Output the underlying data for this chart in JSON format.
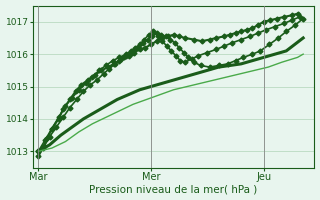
{
  "title": "Pression niveau de la mer( hPa )",
  "bg_color": "#e8f5ee",
  "plot_bg_color": "#e8f5ee",
  "grid_color": "#b0d4b8",
  "line_color_dark": "#1a5c1a",
  "line_color_medium": "#2d8b2d",
  "line_color_light": "#4aaa4a",
  "ylim": [
    1012.5,
    1017.5
  ],
  "yticks": [
    1013,
    1014,
    1015,
    1016,
    1017
  ],
  "xtick_labels": [
    "Mar",
    "Mer",
    "Jeu"
  ],
  "xtick_positions": [
    0.0,
    1.0,
    2.0
  ],
  "series": [
    {
      "x": [
        0.0,
        0.04,
        0.08,
        0.12,
        0.18,
        0.22,
        0.28,
        0.33,
        0.38,
        0.44,
        0.5,
        0.56,
        0.62,
        0.67,
        0.72,
        0.76,
        0.8,
        0.85,
        0.9,
        0.95,
        1.0,
        1.05,
        1.1,
        1.15,
        1.2,
        1.25,
        1.3,
        1.38,
        1.45,
        1.52,
        1.58,
        1.65,
        1.7,
        1.75,
        1.8,
        1.85,
        1.9,
        1.95,
        2.0,
        2.06,
        2.12,
        2.18,
        2.25,
        2.3
      ],
      "y": [
        1012.85,
        1013.1,
        1013.4,
        1013.7,
        1014.0,
        1014.3,
        1014.6,
        1014.85,
        1015.05,
        1015.2,
        1015.35,
        1015.5,
        1015.6,
        1015.7,
        1015.8,
        1015.9,
        1015.95,
        1016.05,
        1016.15,
        1016.2,
        1016.3,
        1016.4,
        1016.5,
        1016.55,
        1016.6,
        1016.55,
        1016.5,
        1016.45,
        1016.4,
        1016.45,
        1016.5,
        1016.55,
        1016.6,
        1016.65,
        1016.7,
        1016.75,
        1016.8,
        1016.9,
        1017.0,
        1017.05,
        1017.1,
        1017.15,
        1017.2,
        1017.25
      ],
      "color": "#1a5c1a",
      "lw": 1.5,
      "marker": true
    },
    {
      "x": [
        0.0,
        0.06,
        0.12,
        0.18,
        0.24,
        0.3,
        0.36,
        0.42,
        0.48,
        0.54,
        0.6,
        0.66,
        0.72,
        0.78,
        0.82,
        0.86,
        0.9,
        0.94,
        0.98,
        1.02,
        1.06,
        1.1,
        1.14,
        1.18,
        1.22,
        1.26,
        1.3,
        1.36,
        1.42,
        1.5,
        1.58,
        1.65,
        1.72,
        1.8,
        1.88,
        1.95,
        2.02,
        2.1,
        2.18,
        2.25,
        2.32
      ],
      "y": [
        1013.0,
        1013.35,
        1013.7,
        1014.05,
        1014.4,
        1014.65,
        1014.9,
        1015.1,
        1015.3,
        1015.5,
        1015.65,
        1015.8,
        1015.9,
        1016.0,
        1016.1,
        1016.2,
        1016.3,
        1016.45,
        1016.6,
        1016.7,
        1016.55,
        1016.4,
        1016.25,
        1016.1,
        1015.95,
        1015.8,
        1015.75,
        1015.85,
        1015.95,
        1016.05,
        1016.15,
        1016.25,
        1016.35,
        1016.45,
        1016.55,
        1016.65,
        1016.75,
        1016.85,
        1016.95,
        1017.05,
        1017.15
      ],
      "color": "#1a5c1a",
      "lw": 1.2,
      "marker": true
    },
    {
      "x": [
        0.0,
        0.05,
        0.1,
        0.16,
        0.22,
        0.28,
        0.34,
        0.4,
        0.46,
        0.52,
        0.58,
        0.63,
        0.68,
        0.73,
        0.78,
        0.83,
        0.88,
        0.93,
        0.97,
        1.01,
        1.05,
        1.09,
        1.13,
        1.17,
        1.21,
        1.25,
        1.29,
        1.33,
        1.38,
        1.44,
        1.52,
        1.6,
        1.68,
        1.75,
        1.82,
        1.9,
        1.97,
        2.05,
        2.13,
        2.2,
        2.28,
        2.35
      ],
      "y": [
        1013.0,
        1013.15,
        1013.45,
        1013.75,
        1014.05,
        1014.35,
        1014.6,
        1014.85,
        1015.05,
        1015.2,
        1015.4,
        1015.55,
        1015.7,
        1015.85,
        1015.95,
        1016.05,
        1016.2,
        1016.35,
        1016.45,
        1016.55,
        1016.65,
        1016.6,
        1016.55,
        1016.45,
        1016.35,
        1016.2,
        1016.05,
        1015.9,
        1015.75,
        1015.65,
        1015.6,
        1015.65,
        1015.7,
        1015.8,
        1015.9,
        1016.0,
        1016.1,
        1016.3,
        1016.5,
        1016.7,
        1016.9,
        1017.1
      ],
      "color": "#1a5c1a",
      "lw": 1.2,
      "marker": true
    },
    {
      "x": [
        0.0,
        0.1,
        0.2,
        0.3,
        0.4,
        0.5,
        0.6,
        0.7,
        0.8,
        0.9,
        1.0,
        1.1,
        1.2,
        1.3,
        1.4,
        1.5,
        1.6,
        1.7,
        1.8,
        1.9,
        2.0,
        2.1,
        2.2,
        2.35
      ],
      "y": [
        1013.0,
        1013.2,
        1013.5,
        1013.75,
        1014.0,
        1014.2,
        1014.4,
        1014.6,
        1014.75,
        1014.9,
        1015.0,
        1015.1,
        1015.2,
        1015.3,
        1015.4,
        1015.5,
        1015.6,
        1015.65,
        1015.7,
        1015.8,
        1015.9,
        1016.0,
        1016.1,
        1016.5
      ],
      "color": "#1a5c1a",
      "lw": 2.2,
      "marker": false
    },
    {
      "x": [
        0.0,
        0.12,
        0.24,
        0.36,
        0.48,
        0.6,
        0.72,
        0.84,
        0.96,
        1.08,
        1.2,
        1.32,
        1.44,
        1.56,
        1.68,
        1.8,
        1.92,
        2.04,
        2.16,
        2.3,
        2.35
      ],
      "y": [
        1013.0,
        1013.1,
        1013.3,
        1013.6,
        1013.85,
        1014.05,
        1014.25,
        1014.45,
        1014.6,
        1014.75,
        1014.9,
        1015.0,
        1015.1,
        1015.2,
        1015.3,
        1015.4,
        1015.5,
        1015.6,
        1015.75,
        1015.9,
        1016.0
      ],
      "color": "#4aaa4a",
      "lw": 1.0,
      "marker": false
    }
  ],
  "vline_color": "#888888",
  "vline_lw": 0.6,
  "marker_style": "D",
  "markersize": 2.5
}
